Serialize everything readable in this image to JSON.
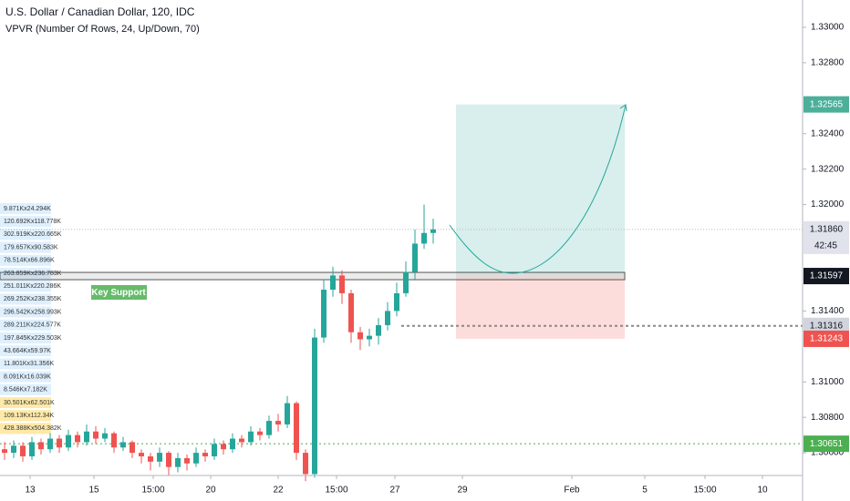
{
  "chart_data": {
    "type": "candlestick",
    "title": "U.S. Dollar / Canadian Dollar, 120, IDC",
    "indicator": "VPVR (Number Of Rows, 24, Up/Down, 70)",
    "annotation": "Key Support",
    "countdown": "42:45",
    "up_color": "#26a69a",
    "down_color": "#ef5350",
    "x": [
      5,
      15,
      25,
      35,
      45,
      55,
      65,
      75,
      85,
      95,
      105,
      115,
      125,
      135,
      145,
      155,
      165,
      175,
      185,
      195,
      205,
      215,
      225,
      235,
      245,
      255,
      265,
      275,
      285,
      295,
      305,
      315,
      325,
      335,
      345,
      355,
      365,
      375,
      385,
      395,
      405,
      415,
      425,
      435,
      445,
      455,
      465,
      475
    ],
    "open": [
      1.3062,
      1.306,
      1.3064,
      1.3058,
      1.3066,
      1.3062,
      1.3068,
      1.3063,
      1.307,
      1.3066,
      1.3072,
      1.3068,
      1.3071,
      1.3063,
      1.3066,
      1.306,
      1.3058,
      1.3055,
      1.306,
      1.3052,
      1.3057,
      1.3054,
      1.306,
      1.3058,
      1.3065,
      1.3062,
      1.3068,
      1.3066,
      1.3072,
      1.307,
      1.3078,
      1.3076,
      1.3088,
      1.306,
      1.3048,
      1.3125,
      1.3152,
      1.316,
      1.315,
      1.3128,
      1.3124,
      1.3126,
      1.3132,
      1.314,
      1.315,
      1.3162,
      1.3178,
      1.3184
    ],
    "high": [
      1.3066,
      1.3067,
      1.3066,
      1.3069,
      1.3068,
      1.3071,
      1.307,
      1.3073,
      1.3072,
      1.3076,
      1.3075,
      1.3074,
      1.3072,
      1.3069,
      1.3067,
      1.3062,
      1.306,
      1.3063,
      1.3061,
      1.306,
      1.3059,
      1.3063,
      1.3062,
      1.3068,
      1.3067,
      1.3071,
      1.307,
      1.3075,
      1.3074,
      1.3081,
      1.3082,
      1.3092,
      1.3089,
      1.3062,
      1.313,
      1.3158,
      1.3165,
      1.3163,
      1.3152,
      1.3131,
      1.313,
      1.3136,
      1.3145,
      1.3156,
      1.3168,
      1.3186,
      1.32,
      1.3192
    ],
    "low": [
      1.3056,
      1.3057,
      1.3055,
      1.3056,
      1.3059,
      1.306,
      1.306,
      1.3061,
      1.3063,
      1.3064,
      1.3065,
      1.3066,
      1.306,
      1.3061,
      1.3057,
      1.3054,
      1.305,
      1.3052,
      1.3047,
      1.3049,
      1.305,
      1.3052,
      1.3055,
      1.3056,
      1.3059,
      1.306,
      1.3063,
      1.3064,
      1.3067,
      1.3068,
      1.3072,
      1.3074,
      1.3056,
      1.3044,
      1.3046,
      1.3122,
      1.3148,
      1.3144,
      1.3122,
      1.3118,
      1.312,
      1.3121,
      1.3129,
      1.3137,
      1.3148,
      1.3158,
      1.3175,
      1.3178
    ],
    "close": [
      1.306,
      1.3064,
      1.3058,
      1.3066,
      1.3062,
      1.3068,
      1.3063,
      1.307,
      1.3066,
      1.3072,
      1.3068,
      1.3071,
      1.3063,
      1.3066,
      1.306,
      1.3058,
      1.3055,
      1.306,
      1.3052,
      1.3057,
      1.3054,
      1.306,
      1.3058,
      1.3065,
      1.3062,
      1.3068,
      1.3066,
      1.3072,
      1.307,
      1.3078,
      1.3076,
      1.3088,
      1.306,
      1.3048,
      1.3125,
      1.3152,
      1.316,
      1.315,
      1.3128,
      1.3124,
      1.3126,
      1.3132,
      1.314,
      1.315,
      1.3162,
      1.3178,
      1.3184,
      1.3186
    ],
    "xlim": [
      0,
      880
    ],
    "xticks": [
      {
        "value": 33,
        "label": "13"
      },
      {
        "value": 103,
        "label": "15"
      },
      {
        "value": 168,
        "label": "15:00"
      },
      {
        "value": 231,
        "label": "20"
      },
      {
        "value": 305,
        "label": "22"
      },
      {
        "value": 369,
        "label": "15:00"
      },
      {
        "value": 433,
        "label": "27"
      },
      {
        "value": 507,
        "label": "29"
      },
      {
        "value": 627,
        "label": "Feb"
      },
      {
        "value": 707,
        "label": "5"
      },
      {
        "value": 773,
        "label": "15:00"
      },
      {
        "value": 836,
        "label": "10"
      }
    ],
    "ylim": [
      1.30472,
      1.33154
    ],
    "yticks": [
      {
        "value": 1.33,
        "label": "1.33000"
      },
      {
        "value": 1.328,
        "label": "1.32800"
      },
      {
        "value": 1.324,
        "label": "1.32400"
      },
      {
        "value": 1.322,
        "label": "1.32200"
      },
      {
        "value": 1.32,
        "label": "1.32000"
      },
      {
        "value": 1.314,
        "label": "1.31400"
      },
      {
        "value": 1.31,
        "label": "1.31000"
      },
      {
        "value": 1.308,
        "label": "1.30800"
      },
      {
        "value": 1.306,
        "label": "1.30600"
      }
    ],
    "price_badges": [
      {
        "value": 1.32565,
        "label": "1.32565",
        "color": "#4caf9a",
        "text_color": "#ffffff"
      },
      {
        "value": 1.3186,
        "label": "1.31860",
        "color": "#e0e3eb",
        "text_color": "#131722"
      },
      {
        "value": 1.31597,
        "label": "1.31597",
        "color": "#131722",
        "text_color": "#ffffff"
      },
      {
        "value": 1.31316,
        "label": "1.31316",
        "color": "#d1d4dc",
        "text_color": "#131722"
      },
      {
        "value": 1.31243,
        "label": "1.31243",
        "color": "#ef5350",
        "text_color": "#ffffff"
      },
      {
        "value": 1.30651,
        "label": "1.30651",
        "color": "#4caf50",
        "text_color": "#ffffff"
      }
    ],
    "vpvr_rows": [
      "9.871Kx24.294K",
      "120.692Kx118.778K",
      "302.919Kx220.665K",
      "179.657Kx90.583K",
      "78.514Kx66.896K",
      "263.859Kx236.783K",
      "251.011Kx220.286K",
      "269.252Kx238.355K",
      "296.542Kx258.993K",
      "289.211Kx224.577K",
      "197.845Kx229.503K",
      "43.664Kx59.97K",
      "11.801Kx31.356K",
      "8.091Kx16.039K",
      "8.546Kx7.182K",
      "30.501Kx62.501K",
      "109.13Kx112.34K",
      "428.388Kx504.382K"
    ]
  }
}
